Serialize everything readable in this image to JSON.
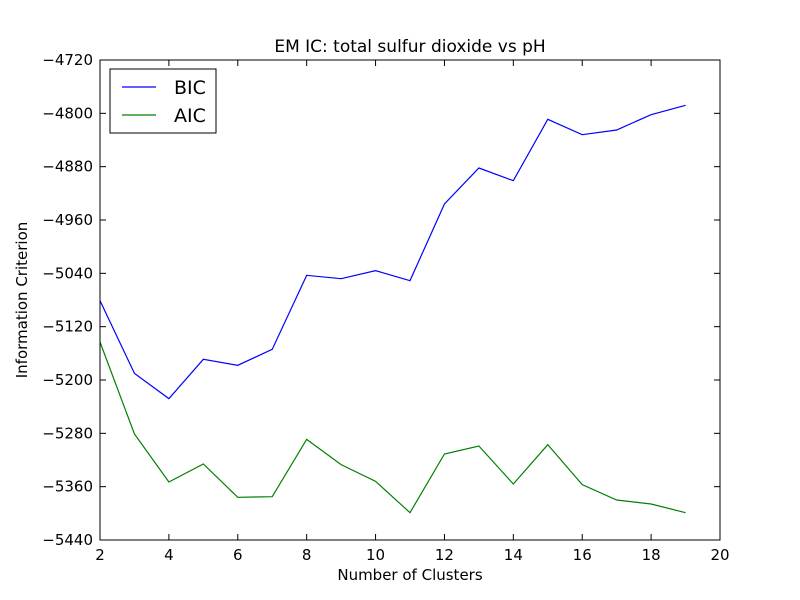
{
  "chart_data": {
    "type": "line",
    "title": "EM IC: total sulfur dioxide vs pH",
    "xlabel": "Number of Clusters",
    "ylabel": "Information Criterion",
    "xlim": [
      2,
      20
    ],
    "ylim": [
      -5440,
      -4720
    ],
    "xticks": [
      2,
      4,
      6,
      8,
      10,
      12,
      14,
      16,
      18,
      20
    ],
    "yticks": [
      -4720,
      -4800,
      -4880,
      -4960,
      -5040,
      -5120,
      -5200,
      -5280,
      -5360,
      -5440
    ],
    "grid": false,
    "legend_position": "top-left",
    "x": [
      2,
      3,
      4,
      5,
      6,
      7,
      8,
      9,
      10,
      11,
      12,
      13,
      14,
      15,
      16,
      17,
      18,
      19
    ],
    "series": [
      {
        "name": "BIC",
        "color": "#0000ff",
        "values": [
          -5081,
          -5190,
          -5228,
          -5169,
          -5178,
          -5154,
          -5043,
          -5048,
          -5036,
          -5051,
          -4936,
          -4882,
          -4901,
          -4809,
          -4832,
          -4825,
          -4802,
          -4788
        ]
      },
      {
        "name": "AIC",
        "color": "#008000",
        "values": [
          -5143,
          -5281,
          -5353,
          -5326,
          -5376,
          -5375,
          -5289,
          -5327,
          -5352,
          -5399,
          -5311,
          -5299,
          -5356,
          -5297,
          -5357,
          -5380,
          -5386,
          -5399
        ]
      }
    ]
  }
}
